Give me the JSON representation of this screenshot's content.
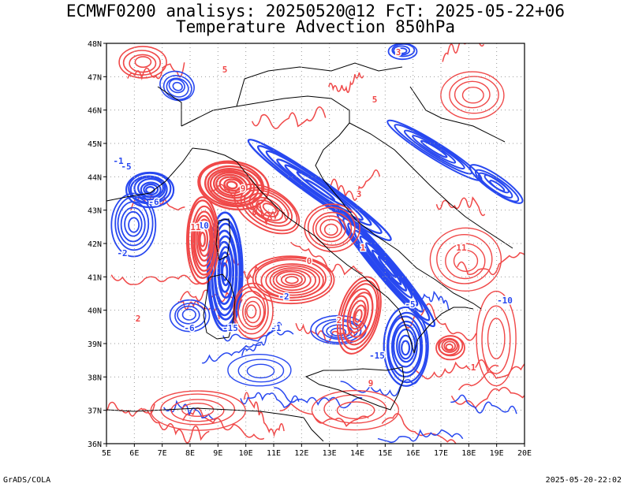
{
  "title_line1": "ECMWF0200 analisys: 20250520@12 FcT: 2025-05-22+06",
  "title_line2": "Temperature Advection 850hPa",
  "footer_left": "GrADS/COLA",
  "footer_right": "2025-05-20-22:02",
  "lon_labels": [
    "5E",
    "6E",
    "7E",
    "8E",
    "9E",
    "10E",
    "11E",
    "12E",
    "13E",
    "14E",
    "15E",
    "16E",
    "17E",
    "18E",
    "19E",
    "20E"
  ],
  "lat_labels": [
    "48N",
    "47N",
    "46N",
    "45N",
    "44N",
    "43N",
    "42N",
    "41N",
    "40N",
    "39N",
    "38N",
    "37N",
    "36N"
  ],
  "colors": {
    "warm": "#f04848",
    "cold": "#2848f0",
    "coast": "#000000",
    "grid": "#9a9a9a"
  },
  "contour_labels": [
    {
      "text": "-1",
      "color": "cold"
    },
    {
      "text": "-2",
      "color": "cold"
    },
    {
      "text": "-5",
      "color": "cold"
    },
    {
      "text": "-6",
      "color": "cold"
    },
    {
      "text": "-10",
      "color": "cold"
    },
    {
      "text": "-15",
      "color": "cold"
    },
    {
      "text": "1",
      "color": "warm"
    },
    {
      "text": "2",
      "color": "warm"
    },
    {
      "text": "3",
      "color": "warm"
    },
    {
      "text": "5",
      "color": "warm"
    },
    {
      "text": "9",
      "color": "warm"
    },
    {
      "text": "11",
      "color": "warm"
    },
    {
      "text": "0",
      "color": "warm"
    }
  ]
}
